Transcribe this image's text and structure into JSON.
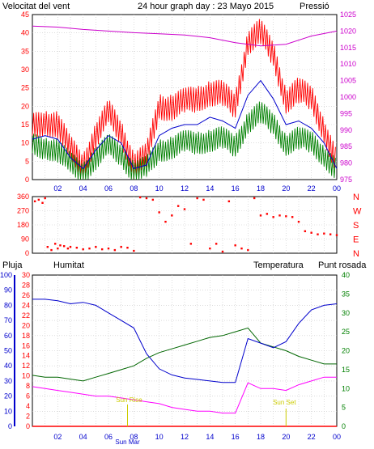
{
  "title": "24 hour graph day : 23 Mayo 2015",
  "top_panel": {
    "left_label": "Velocitat del vent",
    "right_label": "Pressió",
    "left_ticks": [
      "45",
      "40",
      "35",
      "30",
      "25",
      "20",
      "15",
      "10",
      "5",
      "0"
    ],
    "right_ticks": [
      "1025",
      "1020",
      "1015",
      "1010",
      "1005",
      "1000",
      "995",
      "990",
      "985",
      "980",
      "975"
    ]
  },
  "dir_panel": {
    "left_ticks": [
      "360",
      "270",
      "180",
      "90",
      "0"
    ],
    "compass": [
      "N",
      "W",
      "S",
      "E",
      "N"
    ]
  },
  "bottom_panel": {
    "rain_label": "Pluja",
    "humidity_label": "Humitat",
    "temp_label": "Temperatura",
    "dew_label": "Punt rosada",
    "humidity_ticks": [
      "100",
      "90",
      "80",
      "70",
      "60",
      "50",
      "40",
      "30",
      "20",
      "10",
      "0"
    ],
    "rain_ticks": [
      "30",
      "28",
      "26",
      "24",
      "22",
      "20",
      "18",
      "16",
      "14",
      "12",
      "10",
      "8",
      "6",
      "4",
      "2",
      "0"
    ],
    "temp_ticks": [
      "40",
      "35",
      "30",
      "25",
      "20",
      "15",
      "10",
      "5",
      "0"
    ],
    "sun_rise": "Sun Rise",
    "sun_set": "Sun Set",
    "sun_mark": "Sun Mar"
  },
  "x_ticks": [
    "02",
    "04",
    "06",
    "08",
    "10",
    "12",
    "14",
    "16",
    "18",
    "20",
    "22",
    "00"
  ],
  "colors": {
    "gust": "#ff0000",
    "wind": "#008000",
    "avg": "#0000cc",
    "pressure": "#cc00cc",
    "direction": "#ff0000",
    "humidity": "#0000cc",
    "temperature": "#006600",
    "dew": "#ff00ff",
    "grid": "#c8c8c8",
    "axis_blue": "#0000cc",
    "axis_red": "#ff0000",
    "axis_green": "#008000",
    "axis_magenta": "#cc00cc",
    "sun": "#cccc00"
  },
  "chart_data": [
    {
      "type": "line",
      "panel": "wind_pressure",
      "x_unit": "hour",
      "ylim": [
        0,
        45
      ],
      "y2lim": [
        975,
        1025
      ],
      "series": [
        {
          "name": "Velocitat del vent",
          "axis": "left",
          "role": "gust",
          "x": [
            0,
            1,
            2,
            3,
            4,
            5,
            6,
            7,
            8,
            9,
            10,
            11,
            12,
            13,
            14,
            15,
            16,
            17,
            18,
            19,
            20,
            21,
            22,
            23,
            24
          ],
          "y": [
            14,
            16,
            15,
            8,
            4,
            12,
            18,
            13,
            4,
            6,
            20,
            20,
            21,
            22,
            24,
            23,
            20,
            38,
            40,
            34,
            22,
            24,
            22,
            14,
            4
          ]
        },
        {
          "name": "wind",
          "axis": "left",
          "role": "wind",
          "x": [
            0,
            1,
            2,
            3,
            4,
            5,
            6,
            7,
            8,
            9,
            10,
            11,
            12,
            13,
            14,
            15,
            16,
            17,
            18,
            19,
            20,
            21,
            22,
            23,
            24
          ],
          "y": [
            9,
            9,
            8,
            4,
            2,
            6,
            9,
            7,
            2,
            3,
            8,
            9,
            10,
            10,
            11,
            11,
            9,
            16,
            18,
            15,
            10,
            11,
            10,
            7,
            2
          ]
        },
        {
          "name": "average",
          "axis": "left",
          "role": "avg",
          "x": [
            0,
            1,
            2,
            3,
            4,
            5,
            6,
            7,
            8,
            9,
            10,
            11,
            12,
            13,
            14,
            15,
            16,
            17,
            18,
            19,
            20,
            21,
            22,
            23,
            24
          ],
          "y": [
            11,
            12,
            11,
            6,
            3,
            8,
            12,
            10,
            3,
            4,
            12,
            14,
            15,
            15,
            17,
            16,
            14,
            23,
            27,
            22,
            15,
            16,
            14,
            10,
            3
          ]
        },
        {
          "name": "Pressió",
          "axis": "right",
          "x": [
            0,
            2,
            4,
            6,
            8,
            10,
            12,
            14,
            16,
            18,
            20,
            22,
            24
          ],
          "y": [
            1021.5,
            1021.2,
            1020.5,
            1020.0,
            1019.5,
            1019.2,
            1018.8,
            1018.0,
            1016.5,
            1015.5,
            1016.0,
            1018.5,
            1020.0
          ]
        }
      ]
    },
    {
      "type": "scatter",
      "panel": "wind_direction",
      "x_unit": "hour",
      "ylim": [
        0,
        360
      ],
      "series": [
        {
          "name": "direction",
          "x": [
            0.2,
            0.5,
            0.8,
            1.0,
            1.2,
            1.5,
            1.8,
            2.0,
            2.2,
            2.5,
            2.8,
            3.0,
            3.5,
            4.0,
            4.5,
            5.0,
            5.5,
            6.0,
            6.5,
            7.0,
            7.5,
            8.0,
            8.5,
            9.0,
            9.5,
            10.0,
            10.5,
            11.0,
            11.5,
            12.0,
            12.5,
            13.0,
            13.5,
            14.0,
            14.5,
            15.0,
            15.5,
            16.0,
            16.5,
            17.0,
            17.5,
            18.0,
            18.5,
            19.0,
            19.5,
            20.0,
            20.5,
            21.0,
            21.5,
            22.0,
            22.5,
            23.0,
            23.5,
            24.0
          ],
          "y": [
            330,
            340,
            320,
            350,
            40,
            20,
            60,
            30,
            50,
            45,
            30,
            40,
            35,
            25,
            30,
            40,
            25,
            30,
            20,
            40,
            35,
            15,
            355,
            350,
            340,
            260,
            200,
            240,
            300,
            280,
            60,
            350,
            340,
            30,
            60,
            10,
            330,
            50,
            30,
            20,
            350,
            240,
            250,
            230,
            240,
            235,
            230,
            200,
            140,
            130,
            120,
            125,
            120,
            115
          ]
        }
      ]
    },
    {
      "type": "line",
      "panel": "humidity_temperature",
      "x_unit": "hour",
      "ylim": [
        0,
        100
      ],
      "y2lim": [
        0,
        40
      ],
      "series": [
        {
          "name": "Humitat",
          "axis": "left",
          "x": [
            0,
            1,
            2,
            3,
            4,
            5,
            6,
            7,
            8,
            9,
            10,
            11,
            12,
            13,
            14,
            15,
            16,
            17,
            18,
            19,
            20,
            21,
            22,
            23,
            24
          ],
          "y": [
            84,
            84,
            83,
            81,
            82,
            80,
            75,
            70,
            65,
            48,
            38,
            34,
            32,
            31,
            30,
            29,
            29,
            58,
            55,
            52,
            56,
            68,
            77,
            80,
            81
          ]
        },
        {
          "name": "Temperatura",
          "axis": "right",
          "x": [
            0,
            1,
            2,
            3,
            4,
            5,
            6,
            7,
            8,
            9,
            10,
            11,
            12,
            13,
            14,
            15,
            16,
            17,
            18,
            19,
            20,
            21,
            22,
            23,
            24
          ],
          "y": [
            13.5,
            13,
            13,
            12.5,
            12,
            13,
            14,
            15,
            16,
            18,
            19.5,
            20.5,
            21.5,
            22.5,
            23.5,
            24,
            25,
            26,
            22,
            21,
            20,
            18.5,
            17.5,
            16.5,
            16.5
          ]
        },
        {
          "name": "Punt rosada",
          "axis": "right",
          "x": [
            0,
            1,
            2,
            3,
            4,
            5,
            6,
            7,
            8,
            9,
            10,
            11,
            12,
            13,
            14,
            15,
            16,
            17,
            18,
            19,
            20,
            21,
            22,
            23,
            24
          ],
          "y": [
            10.5,
            10,
            9.5,
            9,
            8.5,
            8,
            8,
            7.5,
            7,
            6.5,
            6,
            5,
            4.5,
            4,
            4,
            3.5,
            3.5,
            11.5,
            10,
            10,
            9.5,
            11,
            12,
            13,
            13
          ]
        },
        {
          "name": "Pluja",
          "axis": "rain",
          "x": [
            0,
            24
          ],
          "y": [
            0,
            0
          ]
        }
      ]
    }
  ]
}
